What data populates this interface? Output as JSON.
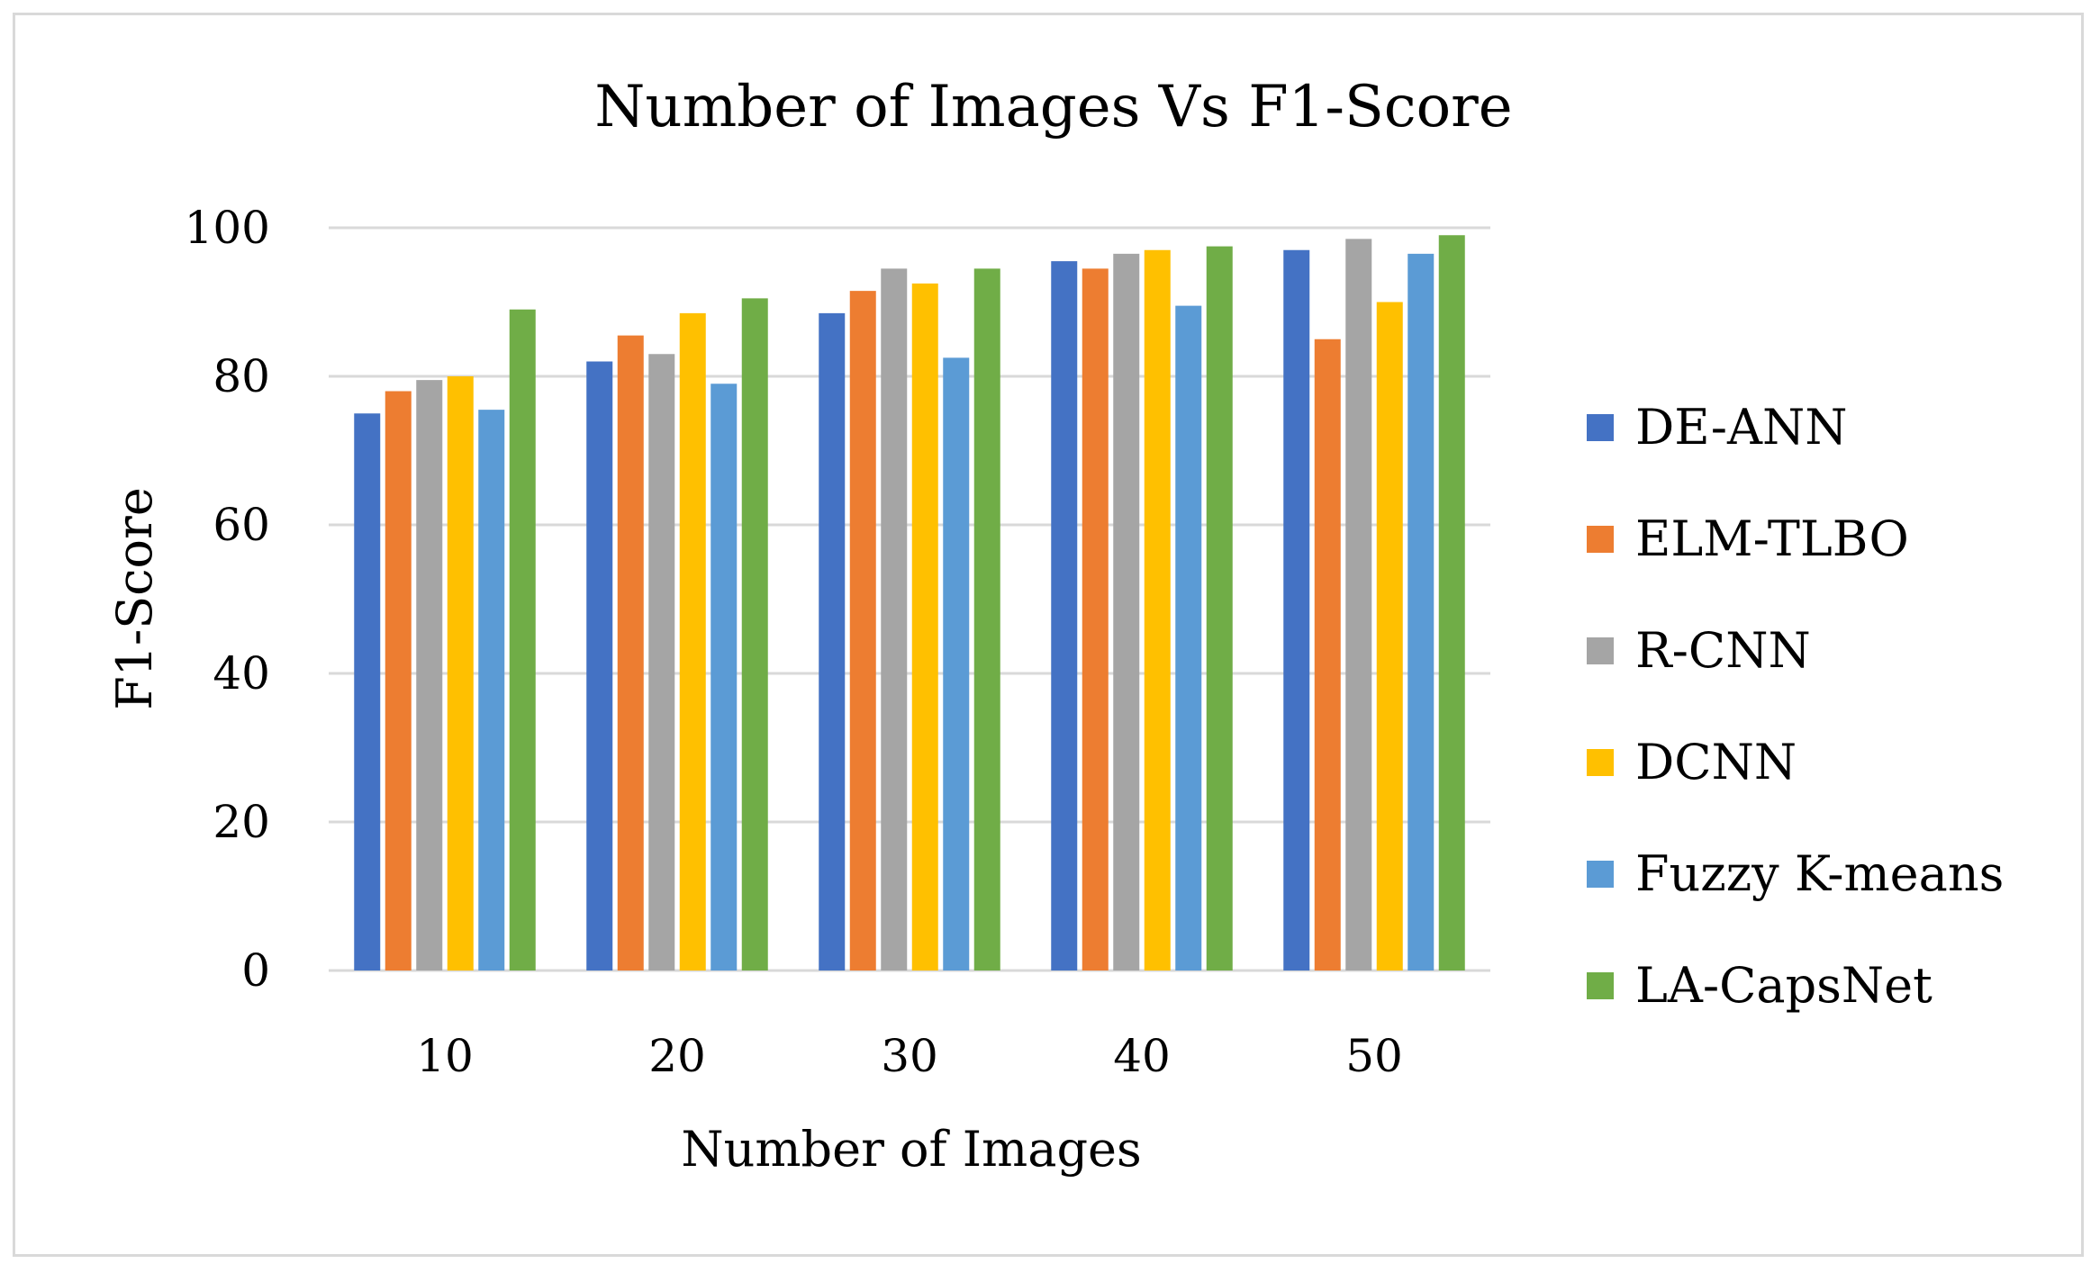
{
  "chart_data": {
    "type": "bar",
    "title": "Number of Images Vs F1-Score",
    "xlabel": "Number of Images",
    "ylabel": "F1-Score",
    "categories": [
      "10",
      "20",
      "30",
      "40",
      "50"
    ],
    "ylim": [
      0,
      100
    ],
    "yticks": [
      "0",
      "20",
      "40",
      "60",
      "80",
      "100"
    ],
    "grid": true,
    "legend_position": "right",
    "series": [
      {
        "name": "DE-ANN",
        "color": "#4472C4",
        "values": [
          75,
          82,
          88.5,
          95.5,
          97
        ]
      },
      {
        "name": "ELM-TLBO",
        "color": "#ED7D31",
        "values": [
          78,
          85.5,
          91.5,
          94.5,
          85
        ]
      },
      {
        "name": "R-CNN",
        "color": "#A5A5A5",
        "values": [
          79.5,
          83,
          94.5,
          96.5,
          98.5
        ]
      },
      {
        "name": "DCNN",
        "color": "#FFC000",
        "values": [
          80,
          88.5,
          92.5,
          97,
          90
        ]
      },
      {
        "name": "Fuzzy K-means",
        "color": "#5B9BD5",
        "values": [
          75.5,
          79,
          82.5,
          89.5,
          96.5
        ]
      },
      {
        "name": "LA-CapsNet",
        "color": "#70AD47",
        "values": [
          89,
          90.5,
          94.5,
          97.5,
          99
        ]
      }
    ]
  }
}
